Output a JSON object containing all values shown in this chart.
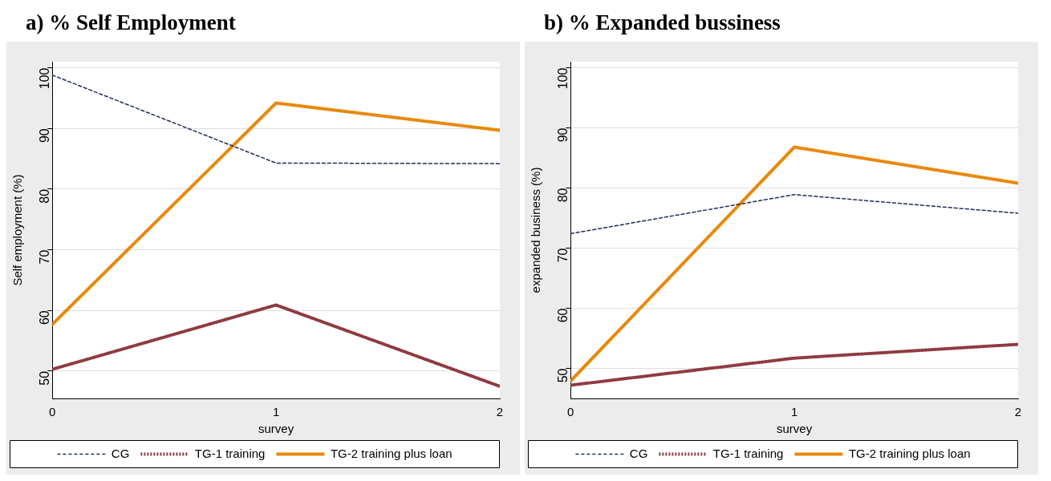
{
  "chart_data": [
    {
      "type": "line",
      "title": "a) % Self Employment",
      "xlabel": "survey",
      "ylabel": "Self employment (%)",
      "x": [
        0,
        1,
        2
      ],
      "xlim": [
        0,
        2
      ],
      "xticks": [
        0,
        1,
        2
      ],
      "ylim": [
        45.5,
        101
      ],
      "yticks": [
        50,
        60,
        70,
        80,
        90,
        100
      ],
      "grid": "y",
      "legend": "bottom",
      "marker": "none",
      "series": [
        {
          "name": "CG",
          "color": "#1f2d5c",
          "line_style": "dashed",
          "values": [
            98.8,
            84.3,
            84.2
          ]
        },
        {
          "name": "TG-1 training",
          "color": "#8e3b40",
          "line_style": "dotted",
          "values": [
            50.3,
            60.9,
            47.5
          ]
        },
        {
          "name": "TG-2 training plus loan",
          "color": "#e8890c",
          "line_style": "solid",
          "values": [
            57.7,
            94.2,
            89.7
          ]
        }
      ]
    },
    {
      "type": "line",
      "title": "b) % Expanded bussiness",
      "xlabel": "survey",
      "ylabel": "expanded business (%)",
      "x": [
        0,
        1,
        2
      ],
      "xlim": [
        0,
        2
      ],
      "xticks": [
        0,
        1,
        2
      ],
      "ylim": [
        45,
        101
      ],
      "yticks": [
        50,
        60,
        70,
        80,
        90,
        100
      ],
      "grid": "y",
      "legend": "bottom",
      "marker": "none",
      "series": [
        {
          "name": "CG",
          "color": "#1f2d5c",
          "line_style": "dashed",
          "values": [
            72.4,
            78.9,
            75.8
          ]
        },
        {
          "name": "TG-1 training",
          "color": "#8e3b40",
          "line_style": "dotted",
          "values": [
            47.2,
            51.7,
            54.0
          ]
        },
        {
          "name": "TG-2 training plus loan",
          "color": "#e8890c",
          "line_style": "solid",
          "values": [
            47.9,
            86.8,
            80.8
          ]
        }
      ]
    }
  ]
}
